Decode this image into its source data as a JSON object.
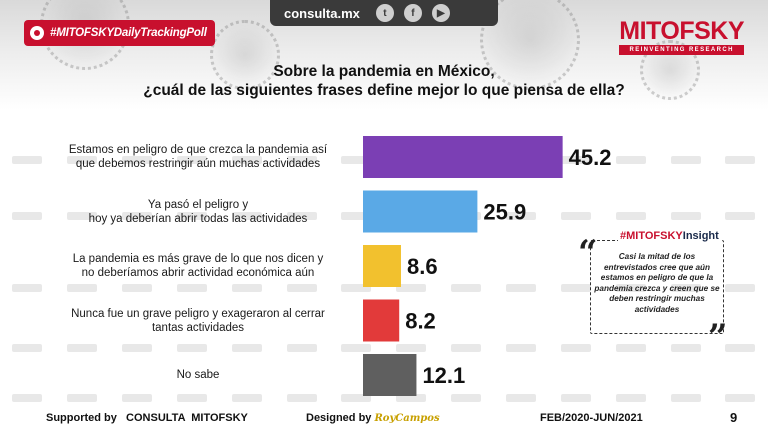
{
  "header": {
    "hashtag": "#MITOFSKYDailyTrackingPoll",
    "site": "consulta.mx",
    "social_icons": [
      "twitter-icon",
      "facebook-icon",
      "youtube-icon"
    ],
    "logo_name": "MITOFSKY",
    "logo_tagline": "REINVENTING RESEARCH"
  },
  "question": {
    "line1": "Sobre la pandemia en México,",
    "line2": "¿cuál de las siguientes frases define mejor lo que piensa de ella?"
  },
  "chart_data": {
    "type": "bar",
    "orientation": "horizontal",
    "categories": [
      [
        "Estamos en peligro de que crezca la pandemia así",
        "que debemos restringir aún muchas actividades"
      ],
      [
        "Ya pasó el peligro y",
        "hoy ya deberían abrir todas las actividades"
      ],
      [
        "La pandemia es más grave de lo que nos dicen y",
        "no deberíamos abrir actividad económica aún"
      ],
      [
        "Nunca fue un grave peligro y exageraron al cerrar",
        "tantas actividades"
      ],
      [
        "No sabe"
      ]
    ],
    "values": [
      45.2,
      25.9,
      8.6,
      8.2,
      12.1
    ],
    "value_labels": [
      "45.2",
      "25.9",
      "8.6",
      "8.2",
      "12.1"
    ],
    "colors": [
      "#7b3fb4",
      "#5aa9e6",
      "#f2c12e",
      "#e23a3a",
      "#5f5f5f"
    ],
    "xlim": [
      0,
      48
    ],
    "title": "Sobre la pandemia en México, ¿cuál de las siguientes frases define mejor lo que piensa de ella?",
    "xlabel": "",
    "ylabel": ""
  },
  "insight": {
    "title_prefix": "#MITOFSKY",
    "title_suffix": "Insight",
    "text": "Casi la mitad de los entrevistados cree que aún estamos en  peligro de que la pandemia crezca y creen que se deben restringir muchas actividades",
    "open_quote": "“",
    "close_quote": "”"
  },
  "footer": {
    "supported": "Supported by   CONSULTA  MITOFSKY",
    "designed": "Designed by",
    "designer": "RoyCampos",
    "period": "FEB/2020-JUN/2021",
    "page": "9"
  }
}
